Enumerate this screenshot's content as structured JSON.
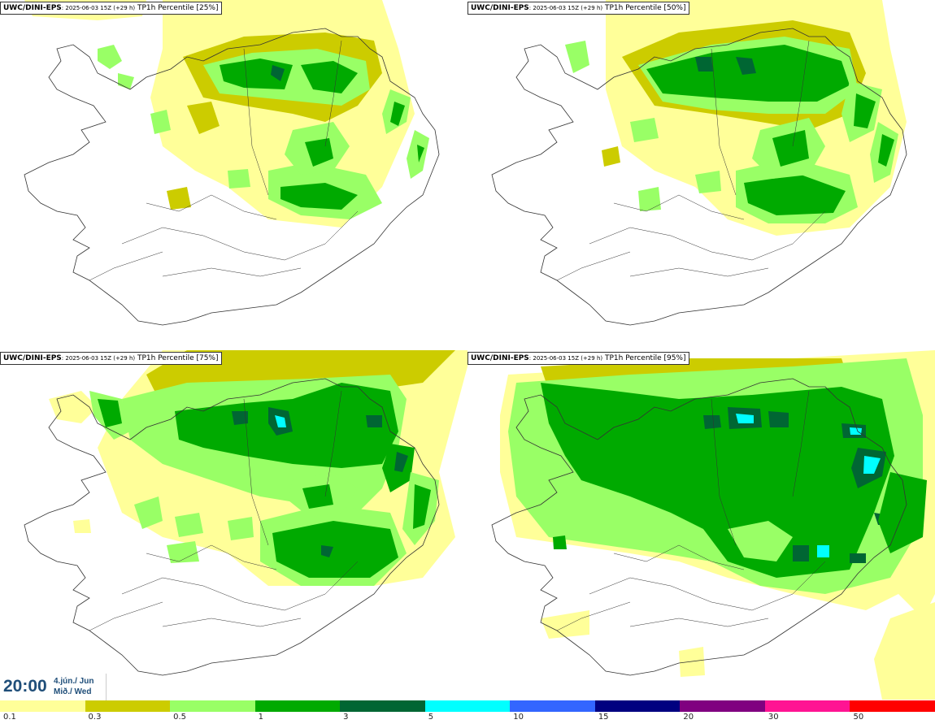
{
  "panels": [
    {
      "source": "UWC/DINI-EPS",
      "meta": ": 2025-06-03 15Z (+29 h)",
      "product": " TP1h Percentile [25%]"
    },
    {
      "source": "UWC/DINI-EPS",
      "meta": ": 2025-06-03 15Z (+29 h)",
      "product": " TP1h Percentile [50%]"
    },
    {
      "source": "UWC/DINI-EPS",
      "meta": ": 2025-06-03 15Z (+29 h)",
      "product": " TP1h Percentile [75%]"
    },
    {
      "source": "UWC/DINI-EPS",
      "meta": ": 2025-06-03 15Z (+29 h)",
      "product": " TP1h Percentile [95%]"
    }
  ],
  "valid_time": {
    "time": "20:00",
    "date": "4.jún./ Jun",
    "weekday": "Mið./ Wed"
  },
  "legend": {
    "colors": [
      "#ffff99",
      "#cccc00",
      "#99ff66",
      "#00aa00",
      "#006633",
      "#00ffff",
      "#3366ff",
      "#000080",
      "#800080",
      "#ff1493",
      "#ff0000"
    ],
    "labels": [
      "0.1",
      "0.3",
      "0.5",
      "1",
      "3",
      "5",
      "10",
      "15",
      "20",
      "30",
      "50"
    ]
  }
}
